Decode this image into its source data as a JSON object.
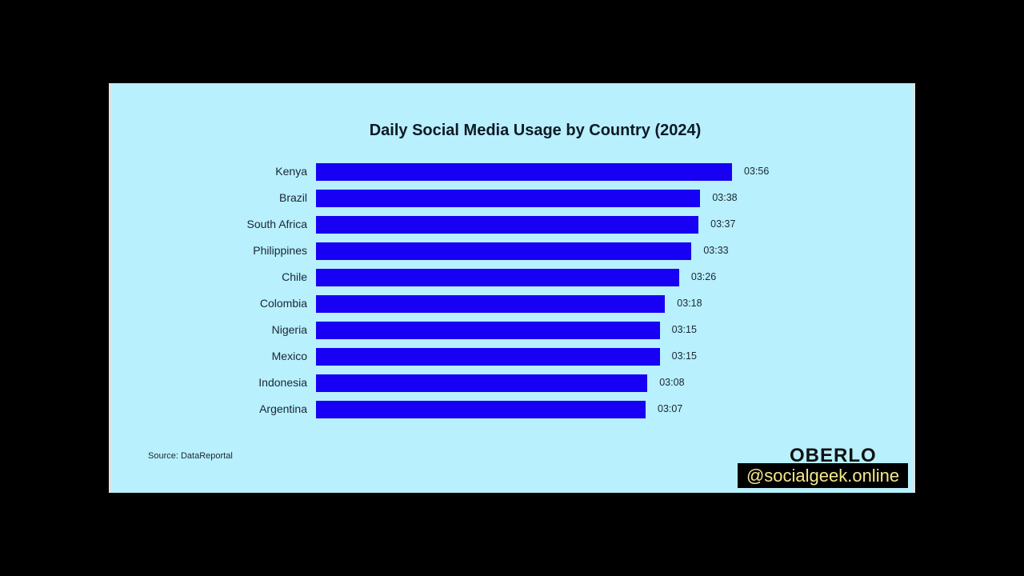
{
  "chart_data": {
    "type": "bar",
    "orientation": "horizontal",
    "title": "Daily Social Media Usage by Country (2024)",
    "xlabel": "",
    "ylabel": "",
    "categories": [
      "Kenya",
      "Brazil",
      "South Africa",
      "Philippines",
      "Chile",
      "Colombia",
      "Nigeria",
      "Mexico",
      "Indonesia",
      "Argentina"
    ],
    "value_labels": [
      "03:56",
      "03:38",
      "03:37",
      "03:33",
      "03:26",
      "03:18",
      "03:15",
      "03:15",
      "03:08",
      "03:07"
    ],
    "values_minutes": [
      236,
      218,
      217,
      213,
      206,
      198,
      195,
      195,
      188,
      187
    ],
    "grid": false,
    "legend": null,
    "bar_color": "#1800f5",
    "background_color": "#b8f0fd"
  },
  "source": "Source: DataReportal",
  "brand": "OBERLO",
  "watermark": "@socialgeek.online"
}
